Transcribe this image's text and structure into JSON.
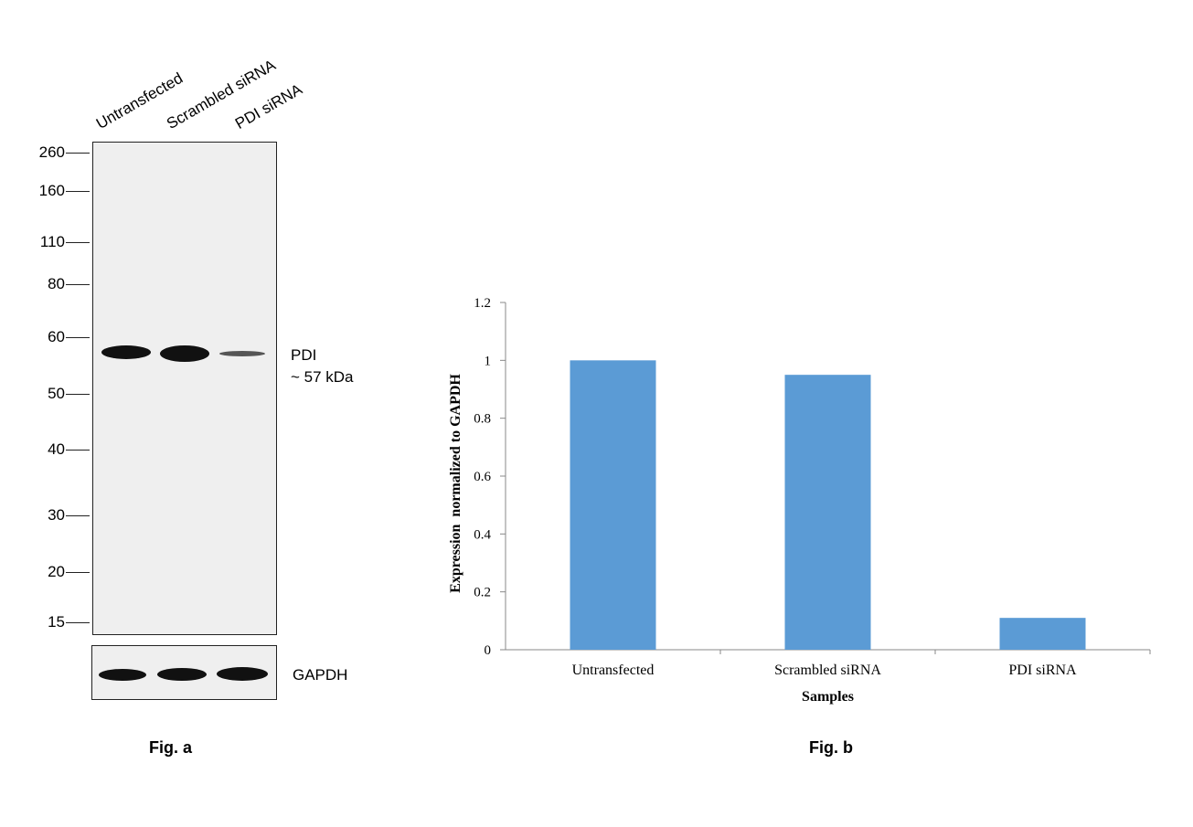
{
  "fig_a": {
    "lanes": [
      "Untransfected",
      "Scrambled siRNA",
      "PDI siRNA"
    ],
    "markers": [
      "260",
      "160",
      "110",
      "80",
      "60",
      "50",
      "40",
      "30",
      "20",
      "15"
    ],
    "target_label": "PDI",
    "target_size": "~ 57 kDa",
    "loading_control": "GAPDH",
    "caption": "Fig. a"
  },
  "fig_b": {
    "caption": "Fig. b"
  },
  "chart_data": {
    "type": "bar",
    "categories": [
      "Untransfected",
      "Scrambled siRNA",
      "PDI siRNA"
    ],
    "values": [
      1.0,
      0.95,
      0.11
    ],
    "title": "",
    "xlabel": "Samples",
    "ylabel": "Expression  normalized to GAPDH",
    "ylim": [
      0,
      1.2
    ],
    "yticks": [
      "0",
      "0.2",
      "0.4",
      "0.6",
      "0.8",
      "1",
      "1.2"
    ],
    "bar_color": "#5b9bd5",
    "grid": false,
    "legend": "none"
  }
}
